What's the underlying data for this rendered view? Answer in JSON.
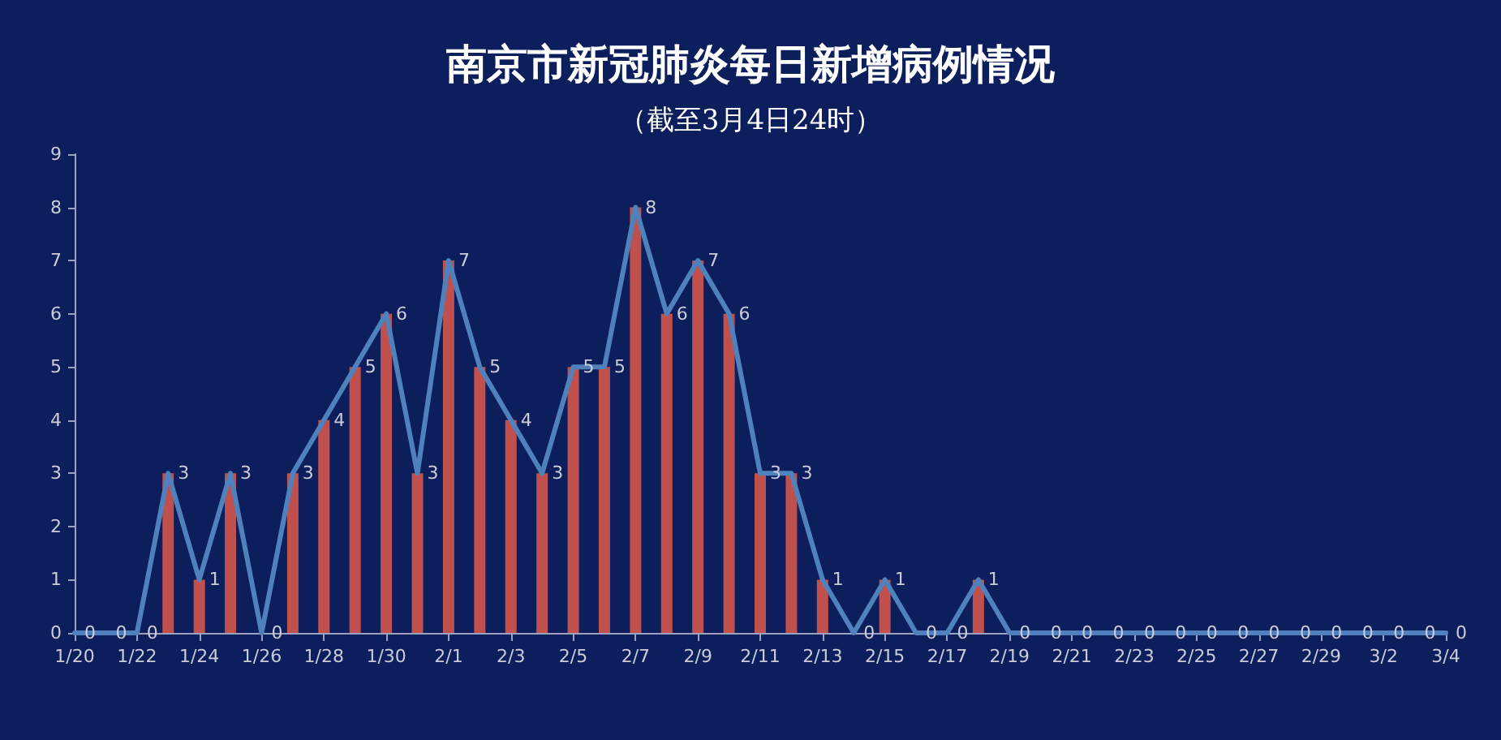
{
  "chart_data": {
    "type": "bar",
    "title": "南京市新冠肺炎每日新增病例情况",
    "subtitle": "（截至3月4日24时）",
    "categories": [
      "1/20",
      null,
      "1/22",
      null,
      "1/24",
      null,
      "1/26",
      null,
      "1/28",
      null,
      "1/30",
      null,
      "2/1",
      null,
      "2/3",
      null,
      "2/5",
      null,
      "2/7",
      null,
      "2/9",
      null,
      "2/11",
      null,
      "2/13",
      null,
      "2/15",
      null,
      "2/17",
      null,
      "2/19",
      null,
      "2/21",
      null,
      "2/23",
      null,
      "2/25",
      null,
      "2/27",
      null,
      "2/29",
      null,
      "3/2",
      null,
      "3/4"
    ],
    "series": [
      {
        "color": "#c0504d",
        "values": [
          0,
          0,
          0,
          3,
          1,
          3,
          0,
          3,
          4,
          5,
          6,
          3,
          7,
          5,
          4,
          3,
          5,
          5,
          8,
          6,
          7,
          6,
          3,
          3,
          1,
          0,
          1,
          0,
          0,
          1,
          0,
          0,
          0,
          0,
          0,
          0,
          0,
          0,
          0,
          0,
          0,
          0,
          0,
          0,
          0
        ]
      },
      {
        "type": "line",
        "color": "#4f81bd",
        "values": [
          0,
          0,
          0,
          3,
          1,
          3,
          0,
          3,
          4,
          5,
          6,
          3,
          7,
          5,
          4,
          3,
          5,
          5,
          8,
          6,
          7,
          6,
          3,
          3,
          1,
          0,
          1,
          0,
          0,
          1,
          0,
          0,
          0,
          0,
          0,
          0,
          0,
          0,
          0,
          0,
          0,
          0,
          0,
          0,
          0
        ],
        "value_labels": [
          "0",
          "0",
          "0",
          "3",
          "1",
          "3",
          "0",
          "3",
          "4",
          "5",
          "6",
          "3",
          "7",
          "5",
          "4",
          "3",
          "5",
          "5",
          "8",
          "6",
          "7",
          "6",
          "3",
          "3",
          "1",
          "0",
          "1",
          "0",
          "0",
          "1",
          "0",
          "0",
          "0",
          "0",
          "0",
          "0",
          "0",
          "0",
          "0",
          "0",
          "0",
          "0",
          "0",
          "0",
          "0"
        ]
      }
    ],
    "ylim": [
      0,
      9
    ],
    "yticks": [
      0,
      1,
      2,
      3,
      4,
      5,
      6,
      7,
      8,
      9
    ],
    "grid": false,
    "marker": "none",
    "line_style": "solid"
  }
}
